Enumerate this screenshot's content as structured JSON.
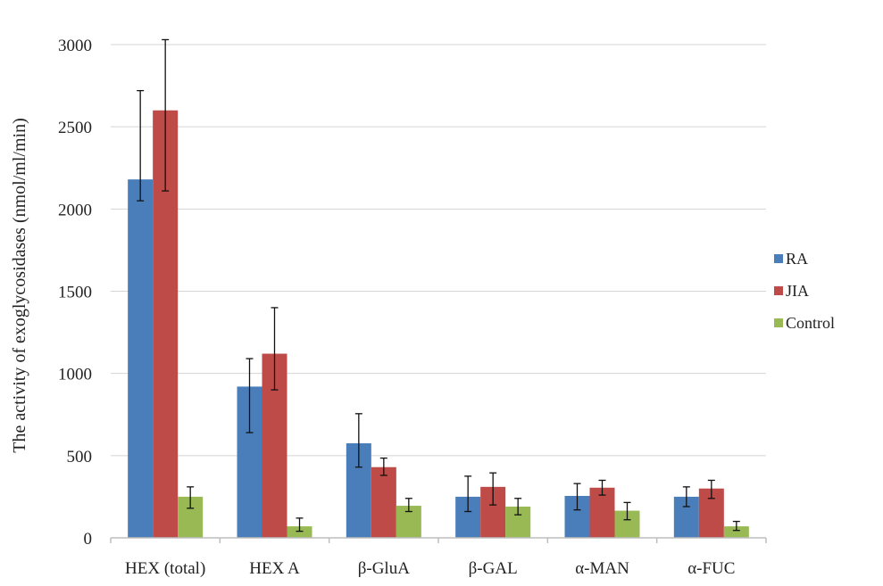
{
  "chart_data": {
    "type": "bar",
    "title": "",
    "xlabel": "",
    "ylabel": "The  activity of exoglycosidases (nmol/ml/min)",
    "ylim": [
      0,
      3000
    ],
    "yticks": [
      0,
      500,
      1000,
      1500,
      2000,
      2500,
      3000
    ],
    "grid": true,
    "legend_position": "right",
    "categories": [
      "HEX (total)",
      "HEX  A",
      "β-GluA",
      "β-GAL",
      "α-MAN",
      "α-FUC"
    ],
    "series": [
      {
        "name": "RA",
        "color": "#4a7ebb",
        "values": [
          2180,
          920,
          575,
          250,
          255,
          250
        ],
        "error_low": [
          2050,
          640,
          430,
          160,
          170,
          190
        ],
        "error_high": [
          2720,
          1090,
          755,
          375,
          330,
          310
        ]
      },
      {
        "name": "JIA",
        "color": "#be4b48",
        "values": [
          2600,
          1120,
          430,
          310,
          305,
          300
        ],
        "error_low": [
          2110,
          900,
          380,
          200,
          260,
          240
        ],
        "error_high": [
          3030,
          1400,
          485,
          395,
          350,
          350
        ]
      },
      {
        "name": "Control",
        "color": "#98b954",
        "values": [
          250,
          70,
          195,
          190,
          165,
          70
        ],
        "error_low": [
          180,
          40,
          160,
          140,
          110,
          45
        ],
        "error_high": [
          310,
          120,
          240,
          240,
          215,
          100
        ]
      }
    ]
  }
}
